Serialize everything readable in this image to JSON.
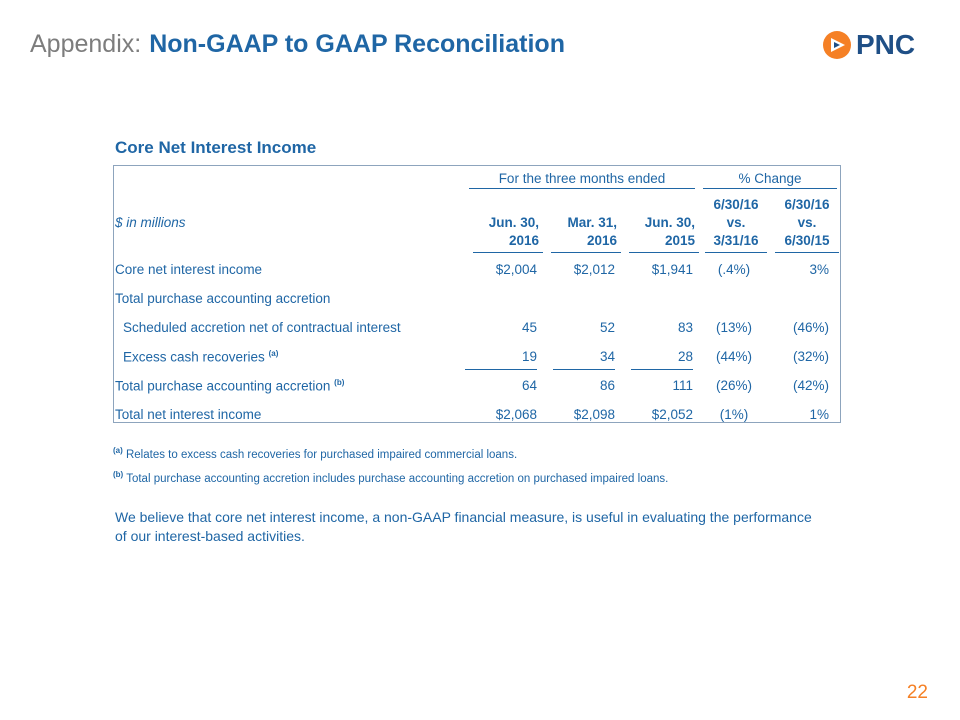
{
  "slide": {
    "title_prefix": "Appendix:",
    "title_main": "Non-GAAP to GAAP Reconciliation",
    "logo_text": "PNC",
    "page_number": "22"
  },
  "colors": {
    "primary_blue": "#1f66a5",
    "gray": "#7d7d7d",
    "logo_orange": "#f58025",
    "logo_navy": "#1f4f86"
  },
  "table": {
    "title": "Core Net Interest Income",
    "group_headers": {
      "three_months": "For the three months ended",
      "pct_change": "% Change"
    },
    "units": "$ in millions",
    "columns": [
      {
        "line1": "Jun. 30,",
        "line2": "2016"
      },
      {
        "line1": "Mar. 31,",
        "line2": "2016"
      },
      {
        "line1": "Jun. 30,",
        "line2": "2015"
      }
    ],
    "change_columns": [
      {
        "line1": "6/30/16",
        "line2": "vs.",
        "line3": "3/31/16"
      },
      {
        "line1": "6/30/16",
        "line2": "vs.",
        "line3": "6/30/15"
      }
    ],
    "rows": [
      {
        "label": "Core net interest income",
        "values": [
          "$2,004",
          "$2,012",
          "$1,941"
        ],
        "changes": [
          "(.4%)",
          "3%"
        ]
      },
      {
        "label": "Total purchase accounting accretion"
      },
      {
        "label": "Scheduled accretion net of contractual interest",
        "values": [
          "45",
          "52",
          "83"
        ],
        "changes": [
          "(13%)",
          "(46%)"
        ]
      },
      {
        "label": "Excess cash recoveries",
        "sup": "(a)",
        "values": [
          "19",
          "34",
          "28"
        ],
        "changes": [
          "(44%)",
          "(32%)"
        ]
      },
      {
        "label": "Total purchase accounting accretion",
        "sup": "(b)",
        "values": [
          "64",
          "86",
          "111"
        ],
        "changes": [
          "(26%)",
          "(42%)"
        ]
      },
      {
        "label": "Total net interest income",
        "values": [
          "$2,068",
          "$2,098",
          "$2,052"
        ],
        "changes": [
          "(1%)",
          "1%"
        ]
      }
    ]
  },
  "footnotes": [
    {
      "marker": "(a)",
      "text": "Relates to excess cash recoveries for purchased impaired commercial loans."
    },
    {
      "marker": "(b)",
      "text": "Total purchase accounting accretion includes purchase accounting accretion on purchased impaired loans."
    }
  ],
  "note": "We believe that core net interest income, a non-GAAP financial measure, is useful in evaluating the performance of our interest-based activities."
}
